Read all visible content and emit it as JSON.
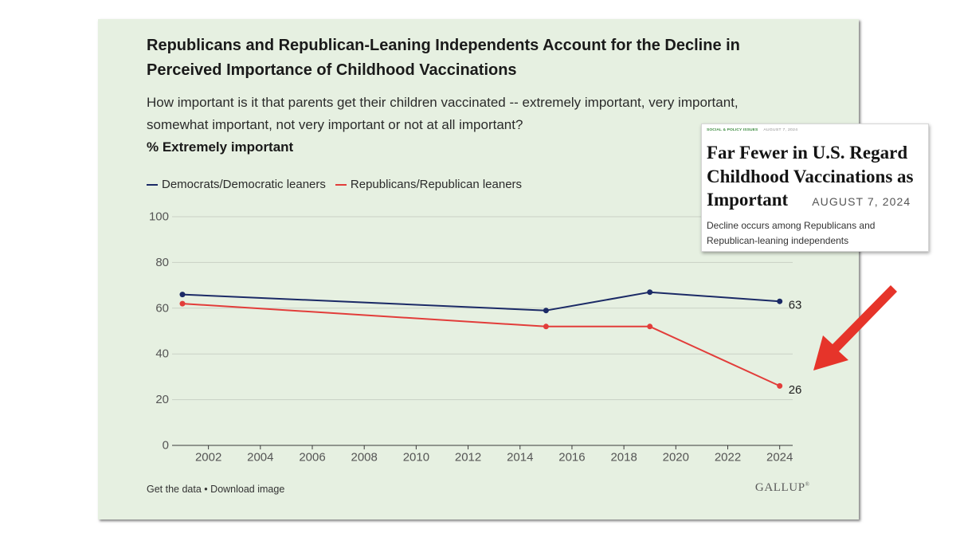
{
  "chart_data": {
    "type": "line",
    "title": "Republicans and Republican-Leaning Independents Account for the Decline in Perceived Importance of Childhood Vaccinations",
    "subtitle": "How important is it that parents get their children vaccinated -- extremely important, very important, somewhat important, not very important or not at all important?",
    "ylabel": "% Extremely important",
    "x": [
      2001,
      2015,
      2019,
      2024
    ],
    "series": [
      {
        "name": "Democrats/Democratic leaners",
        "color": "#1b2a66",
        "values": [
          66,
          59,
          67,
          63
        ]
      },
      {
        "name": "Republicans/Republican leaners",
        "color": "#e23d3a",
        "values": [
          62,
          52,
          52,
          26
        ]
      }
    ],
    "x_ticks": [
      2002,
      2004,
      2006,
      2008,
      2010,
      2012,
      2014,
      2016,
      2018,
      2020,
      2022,
      2024
    ],
    "y_ticks": [
      0,
      20,
      40,
      60,
      80,
      100
    ],
    "xlim": [
      2000.6,
      2024.5
    ],
    "ylim": [
      0,
      100
    ],
    "grid": true,
    "legend": "top-left"
  },
  "footer": {
    "get_data": "Get the data",
    "separator": "•",
    "download_image": "Download image",
    "logo": "GALLUP",
    "logo_mark": "®"
  },
  "article_card": {
    "category": "SOCIAL & POLICY ISSUES",
    "kicker_date": "AUGUST 7, 2024",
    "headline": "Far Fewer in U.S. Regard Childhood Vaccinations as Important",
    "date": "AUGUST 7, 2024",
    "description": "Decline occurs among Republicans and Republican-leaning independents"
  },
  "colors": {
    "card_background": "#e6f0e1",
    "annotation_arrow": "#e6342a",
    "category_label": "#3b8b3f"
  }
}
